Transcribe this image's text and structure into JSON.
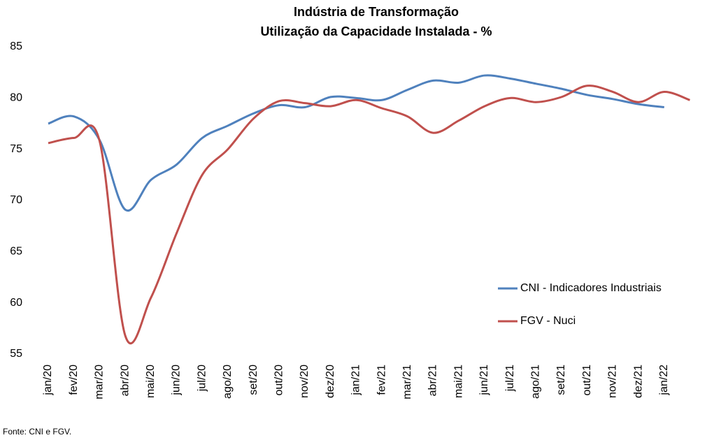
{
  "chart_data": {
    "type": "line",
    "title": "Indústria de Transformação",
    "subtitle": "Utilização da Capacidade Instalada - %",
    "categories": [
      "jan/20",
      "fev/20",
      "mar/20",
      "abr/20",
      "mai/20",
      "jun/20",
      "jul/20",
      "ago/20",
      "set/20",
      "out/20",
      "nov/20",
      "dez/20",
      "jan/21",
      "fev/21",
      "mar/21",
      "abr/21",
      "mai/21",
      "jun/21",
      "jul/21",
      "ago/21",
      "set/21",
      "out/21",
      "nov/21",
      "dez/21",
      "jan/22",
      null
    ],
    "series": [
      {
        "name": "CNI - Indicadores Industriais",
        "color": "#4f81bd",
        "values": [
          77.5,
          78.2,
          75.9,
          69.1,
          72.0,
          73.5,
          76.1,
          77.3,
          78.5,
          79.3,
          79.1,
          80.1,
          80.0,
          79.8,
          80.8,
          81.7,
          81.5,
          82.2,
          81.9,
          81.4,
          80.9,
          80.3,
          79.9,
          79.4,
          79.1,
          null
        ]
      },
      {
        "name": "FGV - Nuci",
        "color": "#c0504d",
        "values": [
          75.6,
          76.1,
          75.8,
          56.8,
          60.5,
          66.8,
          72.5,
          75.0,
          78.0,
          79.7,
          79.5,
          79.2,
          79.8,
          79.0,
          78.2,
          76.6,
          77.8,
          79.2,
          80.0,
          79.6,
          80.1,
          81.2,
          80.6,
          79.6,
          80.6,
          79.8
        ]
      }
    ],
    "ylim": [
      55,
      85
    ],
    "yticks": [
      55,
      60,
      65,
      70,
      75,
      80,
      85
    ],
    "grid": false,
    "legend": "right",
    "note": "Fonte: CNI e FGV."
  }
}
